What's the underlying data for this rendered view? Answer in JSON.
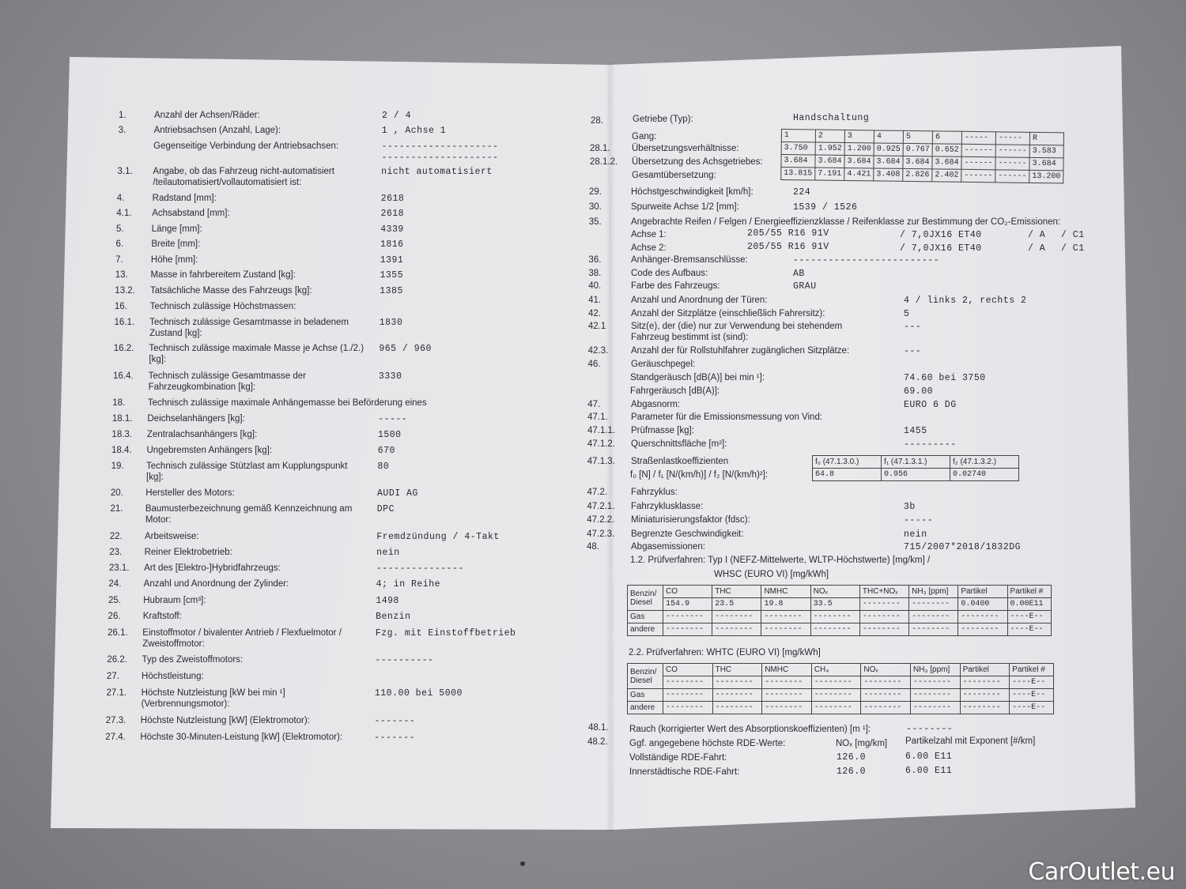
{
  "left": {
    "rows": [
      {
        "num": "1.",
        "label": "Anzahl der Achsen/Räder:",
        "value": "2  /  4"
      },
      {
        "num": "3.",
        "label": "Antriebsachsen (Anzahl, Lage):",
        "value": "1 , Achse 1"
      },
      {
        "num": "",
        "label": "Gegenseitige Verbindung der Antriebsachsen:",
        "value": "--------------------"
      },
      {
        "num": "3.1.",
        "label": "Angabe, ob das Fahrzeug nicht-automatisiert /teilautomatisiert/vollautomatisiert ist:",
        "value": "nicht automatisiert"
      },
      {
        "num": "4.",
        "label": "Radstand [mm]:",
        "value": "2618"
      },
      {
        "num": "4.1.",
        "label": "Achsabstand [mm]:",
        "value": "2618"
      },
      {
        "num": "5.",
        "label": "Länge [mm]:",
        "value": "4339"
      },
      {
        "num": "6.",
        "label": "Breite [mm]:",
        "value": "1816"
      },
      {
        "num": "7.",
        "label": "Höhe [mm]:",
        "value": "1391"
      },
      {
        "num": "13.",
        "label": "Masse in fahrbereitem Zustand [kg]:",
        "value": "1355"
      },
      {
        "num": "13.2.",
        "label": "Tatsächliche Masse des Fahrzeugs [kg]:",
        "value": "1385"
      },
      {
        "num": "16.",
        "label": "Technisch zulässige Höchstmassen:",
        "value": ""
      },
      {
        "num": "16.1.",
        "label": "Technisch zulässige Gesamtmasse in beladenem Zustand [kg]:",
        "value": "1830"
      },
      {
        "num": "16.2.",
        "label": "Technisch zulässige maximale Masse je Achse (1./2.) [kg]:",
        "value": "965   /  960"
      },
      {
        "num": "16.4.",
        "label": "Technisch zulässige Gesamtmasse der Fahrzeugkombination [kg]:",
        "value": "3330"
      },
      {
        "num": "18.",
        "label": "Technisch zulässige maximale Anhängemasse bei Beförderung eines",
        "value": ""
      },
      {
        "num": "18.1.",
        "label": "Deichselanhängers [kg]:",
        "value": "-----"
      },
      {
        "num": "18.3.",
        "label": "Zentralachsanhängers [kg]:",
        "value": "1500"
      },
      {
        "num": "18.4.",
        "label": "Ungebremsten Anhängers [kg]:",
        "value": "670"
      },
      {
        "num": "19.",
        "label": "Technisch zulässige Stützlast am Kupplungspunkt [kg]:",
        "value": "80"
      },
      {
        "num": "20.",
        "label": "Hersteller des Motors:",
        "value": "AUDI AG"
      },
      {
        "num": "21.",
        "label": "Baumusterbezeichnung gemäß Kennzeichnung am Motor:",
        "value": "DPC"
      },
      {
        "num": "22.",
        "label": "Arbeitsweise:",
        "value": "Fremdzündung / 4-Takt"
      },
      {
        "num": "23.",
        "label": "Reiner Elektrobetrieb:",
        "value": "nein"
      },
      {
        "num": "23.1.",
        "label": "Art des [Elektro-]Hybridfahrzeugs:",
        "value": "---------------"
      },
      {
        "num": "24.",
        "label": "Anzahl und Anordnung der Zylinder:",
        "value": "4; in Reihe"
      },
      {
        "num": "25.",
        "label": "Hubraum [cm³]:",
        "value": "1498"
      },
      {
        "num": "26.",
        "label": "Kraftstoff:",
        "value": "Benzin"
      },
      {
        "num": "26.1.",
        "label": "Einstoffmotor / bivalenter Antrieb / Flexfuelmotor / Zweistoffmotor:",
        "value": "Fzg. mit Einstoffbetrieb"
      },
      {
        "num": "26.2.",
        "label": "Typ des Zweistoffmotors:",
        "value": "----------"
      },
      {
        "num": "27.",
        "label": "Höchstleistung:",
        "value": ""
      },
      {
        "num": "27.1.",
        "label": "Höchste Nutzleistung [kW bei min ¹] (Verbrennungsmotor):",
        "value": "110.00  bei 5000"
      },
      {
        "num": "27.3.",
        "label": "Höchste Nutzleistung [kW] (Elektromotor):",
        "value": "-------"
      },
      {
        "num": "27.4.",
        "label": "Höchste 30-Minuten-Leistung [kW] (Elektromotor):",
        "value": "-------"
      }
    ]
  },
  "right": {
    "gearbox": {
      "num": "28.",
      "label": "Getriebe (Typ):",
      "value": "Handschaltung"
    },
    "gear_labels": [
      {
        "num": "",
        "label": "Gang:"
      },
      {
        "num": "28.1.",
        "label": "Übersetzungsverhältnisse:"
      },
      {
        "num": "28.1.2.",
        "label": "Übersetzung des Achsgetriebes:"
      },
      {
        "num": "",
        "label": "Gesamtübersetzung:"
      }
    ],
    "gear_table": [
      [
        "1",
        "2",
        "3",
        "4",
        "5",
        "6",
        "-----",
        "-----",
        "R"
      ],
      [
        "3.750",
        "1.952",
        "1.200",
        "0.925",
        "0.767",
        "0.652",
        "------",
        "------",
        "3.583"
      ],
      [
        "3.684",
        "3.684",
        "3.684",
        "3.684",
        "3.684",
        "3.684",
        "------",
        "------",
        "3.684"
      ],
      [
        "13.815",
        "7.191",
        "4.421",
        "3.408",
        "2.826",
        "2.402",
        "------",
        "------",
        "13.200"
      ]
    ],
    "rows": [
      {
        "num": "29.",
        "label": "Höchstgeschwindigkeit [km/h]:",
        "value": "224"
      },
      {
        "num": "30.",
        "label": "Spurweite Achse 1/2 [mm]:",
        "value": "1539   /  1526"
      },
      {
        "num": "35.",
        "label": "Angebrachte Reifen / Felgen / Energieeffizienzklasse / Reifenklasse zur Bestimmung der CO₂-Emissionen:",
        "value": ""
      },
      {
        "num": "36.",
        "label": "Anhänger-Bremsanschlüsse:",
        "value": "-------------------------"
      },
      {
        "num": "38.",
        "label": "Code des Aufbaus:",
        "value": "AB"
      },
      {
        "num": "40.",
        "label": "Farbe des Fahrzeugs:",
        "value": "GRAU"
      },
      {
        "num": "41.",
        "label": "Anzahl und Anordnung der Türen:",
        "value": "4    / links 2, rechts 2"
      },
      {
        "num": "42.",
        "label": "Anzahl der Sitzplätze (einschließlich Fahrersitz):",
        "value": "5"
      },
      {
        "num": "42.1",
        "label": "Sitz(e), der (die) nur zur Verwendung bei stehendem Fahrzeug bestimmt ist (sind):",
        "value": "---"
      },
      {
        "num": "42.3.",
        "label": "Anzahl der für Rollstuhlfahrer zugänglichen Sitzplätze:",
        "value": "---"
      },
      {
        "num": "46.",
        "label": "Geräuschpegel:",
        "value": ""
      },
      {
        "num": "",
        "label": "Standgeräusch [dB(A)] bei min ¹]:",
        "value": "74.60   bei 3750"
      },
      {
        "num": "",
        "label": "Fahrgeräusch [dB(A)]:",
        "value": "69.00"
      },
      {
        "num": "47.",
        "label": "Abgasnorm:",
        "value": "EURO 6 DG"
      },
      {
        "num": "47.1.",
        "label": "Parameter für die Emissionsmessung von Vind:",
        "value": ""
      },
      {
        "num": "47.1.1.",
        "label": "Prüfmasse [kg]:",
        "value": "1455"
      },
      {
        "num": "47.1.2.",
        "label": "Querschnittsfläche [m²]:",
        "value": "---------"
      },
      {
        "num": "47.1.3.",
        "label": "Straßenlastkoeffizienten",
        "value": ""
      },
      {
        "num": "",
        "label": "f₀ [N] / f₁ [N/(km/h)] / f₂ [N/(km/h)²]:",
        "value": ""
      },
      {
        "num": "47.2.",
        "label": "Fahrzyklus:",
        "value": ""
      },
      {
        "num": "47.2.1.",
        "label": "Fahrzyklusklasse:",
        "value": "3b"
      },
      {
        "num": "47.2.2.",
        "label": "Miniaturisierungsfaktor (fdsc):",
        "value": "-----"
      },
      {
        "num": "47.2.3.",
        "label": "Begrenzte Geschwindigkeit:",
        "value": "nein"
      },
      {
        "num": "48.",
        "label": "Abgasemissionen:",
        "value": "715/2007*2018/1832DG"
      }
    ],
    "tyres": [
      {
        "axle": "Achse 1:",
        "tyre": "205/55 R16 91V",
        "rim": "/ 7,0JX16 ET40",
        "eff": "/ A",
        "cls": "/ C1"
      },
      {
        "axle": "Achse 2:",
        "tyre": "205/55 R16 91V",
        "rim": "/ 7,0JX16 ET40",
        "eff": "/ A",
        "cls": "/ C1"
      }
    ],
    "roadload_table": [
      [
        "f₀ (47.1.3.0.)",
        "f₁ (47.1.3.1.)",
        "f₂ (47.1.3.2.)"
      ],
      [
        "64.8",
        "0.956",
        "0.02740"
      ]
    ],
    "test1_title": "1.2. Prüfverfahren:  Typ I (NEFZ-Mittelwerte, WLTP-Höchstwerte) [mg/km] /",
    "test1_title2": "WHSC (EURO VI) [mg/kWh]",
    "test1_table": [
      [
        "Benzin/ Diesel",
        "CO",
        "THC",
        "NMHC",
        "NOₓ",
        "THC+NOₓ",
        "NH₃ [ppm]",
        "Partikel",
        "Partikel #"
      ],
      [
        "",
        "154.9",
        "23.5",
        "19.8",
        "33.5",
        "--------",
        "--------",
        "0.0400",
        "0.00E11"
      ],
      [
        "Gas",
        "--------",
        "--------",
        "--------",
        "--------",
        "--------",
        "--------",
        "--------",
        "----E--"
      ],
      [
        "andere",
        "--------",
        "--------",
        "--------",
        "--------",
        "--------",
        "--------",
        "--------",
        "----E--"
      ]
    ],
    "test2_title": "2.2. Prüfverfahren:  WHTC (EURO VI) [mg/kWh]",
    "test2_table": [
      [
        "Benzin/ Diesel",
        "CO",
        "THC",
        "NMHC",
        "CH₄",
        "NOₓ",
        "NH₃ [ppm]",
        "Partikel",
        "Partikel #"
      ],
      [
        "",
        "--------",
        "--------",
        "--------",
        "--------",
        "--------",
        "--------",
        "--------",
        "----E--"
      ],
      [
        "Gas",
        "--------",
        "--------",
        "--------",
        "--------",
        "--------",
        "--------",
        "--------",
        "----E--"
      ],
      [
        "andere",
        "--------",
        "--------",
        "--------",
        "--------",
        "--------",
        "--------",
        "--------",
        "----E--"
      ]
    ],
    "smoke": {
      "num": "48.1.",
      "label": "Rauch (korrigierter Wert des Absorptionskoeffizienten) [m ¹]:",
      "value": "--------"
    },
    "rde": {
      "num": "48.2.",
      "label": "Ggf. angegebene höchste RDE-Werte:",
      "nox_header": "NOₓ [mg/km]",
      "pn_header": "Partikelzahl mit Exponent [#/km]",
      "rows": [
        {
          "label": "Vollständige RDE-Fahrt:",
          "nox": "126.0",
          "pn": "6.00 E11"
        },
        {
          "label": "Innerstädtische RDE-Fahrt:",
          "nox": "126.0",
          "pn": "6.00 E11"
        }
      ]
    }
  },
  "watermark": "CarOutlet.eu"
}
